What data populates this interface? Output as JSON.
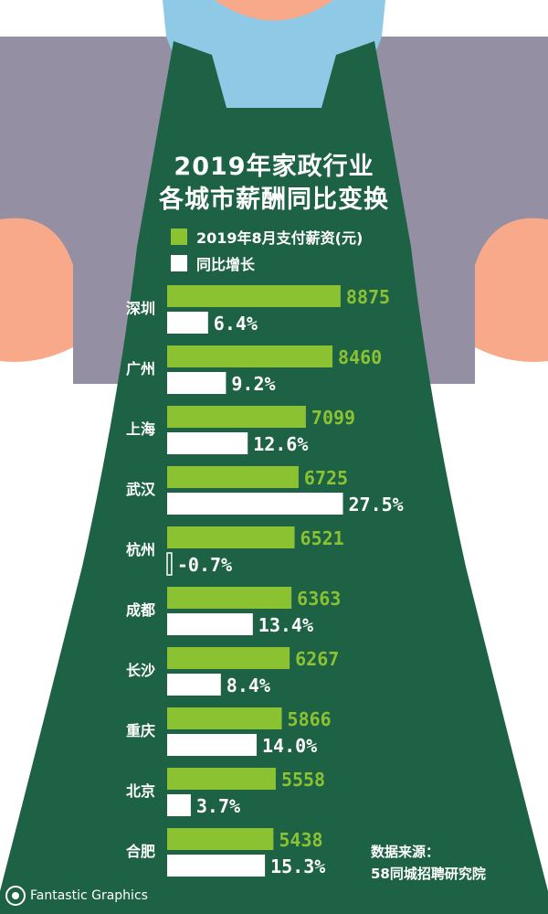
{
  "colors": {
    "apron": "#1e6245",
    "shirt": "#948fa3",
    "collar": "#8ec9e6",
    "skin": "#f7a98a",
    "salary_bar": "#8bc232",
    "growth_bar": "#ffffff",
    "label_text": "#ffffff"
  },
  "title": {
    "line1": "2019年家政行业",
    "line2": "各城市薪酬同比变换"
  },
  "chart_data": {
    "type": "bar",
    "orientation": "horizontal",
    "categories": [
      "深圳",
      "广州",
      "上海",
      "武汉",
      "杭州",
      "成都",
      "长沙",
      "重庆",
      "北京",
      "合肥"
    ],
    "series": [
      {
        "name": "2019年8月支付薪资(元)",
        "values": [
          8875,
          8460,
          7099,
          6725,
          6521,
          6363,
          6267,
          5866,
          5558,
          5438
        ],
        "labels": [
          "8875",
          "8460",
          "7099",
          "6725",
          "6521",
          "6363",
          "6267",
          "5866",
          "5558",
          "5438"
        ]
      },
      {
        "name": "同比增长",
        "values": [
          6.4,
          9.2,
          12.6,
          27.5,
          -0.7,
          13.4,
          8.4,
          14.0,
          3.7,
          15.3
        ],
        "labels": [
          "6.4%",
          "9.2%",
          "12.6%",
          "27.5%",
          "-0.7%",
          "13.4%",
          "8.4%",
          "14.0%",
          "3.7%",
          "15.3%"
        ]
      }
    ],
    "legend_position": "top-left"
  },
  "source": {
    "line1": "数据来源：",
    "line2": "58同城招聘研究院"
  },
  "brand": "Fantastic Graphics"
}
